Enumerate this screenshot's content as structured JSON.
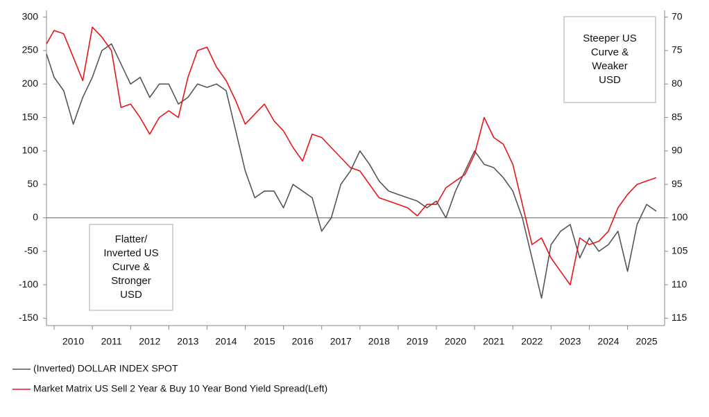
{
  "chart_data": {
    "type": "line",
    "x": [
      2009.8,
      2010,
      2010.25,
      2010.5,
      2010.75,
      2011,
      2011.25,
      2011.5,
      2011.75,
      2012,
      2012.25,
      2012.5,
      2012.75,
      2013,
      2013.25,
      2013.5,
      2013.75,
      2014,
      2014.25,
      2014.5,
      2014.75,
      2015,
      2015.25,
      2015.5,
      2015.75,
      2016,
      2016.25,
      2016.5,
      2016.75,
      2017,
      2017.25,
      2017.5,
      2017.75,
      2018,
      2018.25,
      2018.5,
      2018.75,
      2019,
      2019.25,
      2019.5,
      2019.75,
      2020,
      2020.25,
      2020.5,
      2020.75,
      2021,
      2021.25,
      2021.5,
      2021.75,
      2022,
      2022.25,
      2022.5,
      2022.75,
      2023,
      2023.25,
      2023.5,
      2023.75,
      2024,
      2024.25,
      2024.5,
      2024.75,
      2025,
      2025.25,
      2025.5,
      2025.75
    ],
    "series": [
      {
        "name": "(Inverted) DOLLAR INDEX SPOT",
        "color": "#555555",
        "axis": "y2",
        "values": [
          75.5,
          79,
          81,
          86,
          82,
          79,
          75,
          74,
          77,
          80,
          79,
          82,
          80,
          80,
          83,
          82,
          80,
          80.5,
          80,
          81,
          87,
          93,
          97,
          96,
          96,
          98.5,
          95,
          96,
          97,
          102,
          100,
          95,
          93,
          90,
          92,
          94.5,
          96,
          96.5,
          97,
          97.5,
          98.5,
          97.5,
          100,
          96,
          93,
          90,
          92,
          92.5,
          94,
          96,
          100,
          106,
          112,
          104,
          102,
          101,
          106,
          103,
          105,
          104,
          102,
          108,
          101,
          98,
          99
        ]
      },
      {
        "name": "Market Matrix US Sell 2 Year & Buy 10 Year Bond Yield Spread(Left)",
        "color": "#e8141b",
        "values": [
          260,
          280,
          275,
          240,
          205,
          285,
          270,
          250,
          165,
          170,
          150,
          125,
          150,
          160,
          150,
          210,
          250,
          255,
          225,
          205,
          175,
          140,
          155,
          170,
          145,
          130,
          105,
          85,
          125,
          120,
          105,
          90,
          75,
          70,
          50,
          30,
          25,
          20,
          15,
          3,
          20,
          20,
          45,
          55,
          65,
          95,
          150,
          120,
          110,
          80,
          20,
          -40,
          -30,
          -60,
          -80,
          -100,
          -30,
          -40,
          -35,
          -20,
          15,
          35,
          50,
          55,
          60
        ]
      }
    ],
    "xlim": [
      2009.8,
      2025.97
    ],
    "xticks": [
      2010,
      2011,
      2012,
      2013,
      2014,
      2015,
      2016,
      2017,
      2018,
      2019,
      2020,
      2021,
      2022,
      2023,
      2024,
      2025
    ],
    "ylim": [
      -161,
      310
    ],
    "yticks": [
      -150,
      -100,
      -50,
      0,
      50,
      100,
      150,
      200,
      250,
      300
    ],
    "y2lim": [
      116.1,
      69
    ],
    "y2ticks": [
      70,
      75,
      80,
      85,
      90,
      95,
      100,
      105,
      110,
      115
    ],
    "zero_line": true,
    "annotations": [
      {
        "lines": [
          "Steeper US",
          "Curve &",
          "Weaker",
          "USD"
        ]
      },
      {
        "lines": [
          "Flatter/",
          "Inverted US",
          "Curve &",
          "Stronger",
          "USD"
        ]
      }
    ]
  }
}
